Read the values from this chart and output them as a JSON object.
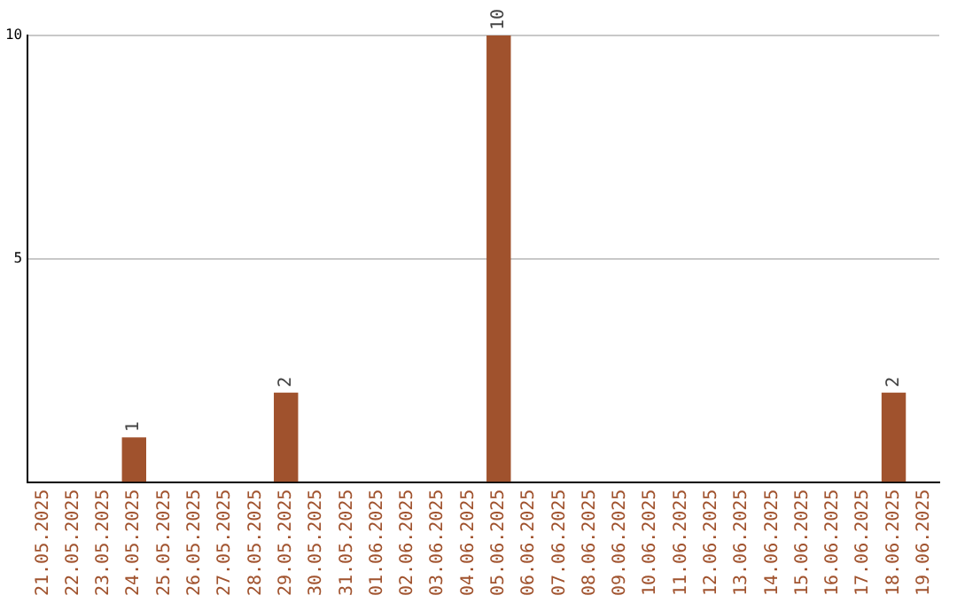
{
  "chart_data": {
    "type": "bar",
    "categories": [
      "21.05.2025",
      "22.05.2025",
      "23.05.2025",
      "24.05.2025",
      "25.05.2025",
      "26.05.2025",
      "27.05.2025",
      "28.05.2025",
      "29.05.2025",
      "30.05.2025",
      "31.05.2025",
      "01.06.2025",
      "02.06.2025",
      "03.06.2025",
      "04.06.2025",
      "05.06.2025",
      "06.06.2025",
      "07.06.2025",
      "08.06.2025",
      "09.06.2025",
      "10.06.2025",
      "11.06.2025",
      "12.06.2025",
      "13.06.2025",
      "14.06.2025",
      "15.06.2025",
      "16.06.2025",
      "17.06.2025",
      "18.06.2025",
      "19.06.2025"
    ],
    "values": [
      0,
      0,
      0,
      1,
      0,
      0,
      0,
      0,
      2,
      0,
      0,
      0,
      0,
      0,
      0,
      10,
      0,
      0,
      0,
      0,
      0,
      0,
      0,
      0,
      0,
      0,
      0,
      0,
      2,
      0
    ],
    "value_labels": [
      null,
      null,
      null,
      "1",
      null,
      null,
      null,
      null,
      "2",
      null,
      null,
      null,
      null,
      null,
      null,
      "10",
      null,
      null,
      null,
      null,
      null,
      null,
      null,
      null,
      null,
      null,
      null,
      null,
      "2",
      null
    ],
    "color": "#a0522d",
    "ylim": [
      0,
      10
    ],
    "yticks": [
      5,
      10
    ],
    "grid": "y",
    "legend": false
  }
}
